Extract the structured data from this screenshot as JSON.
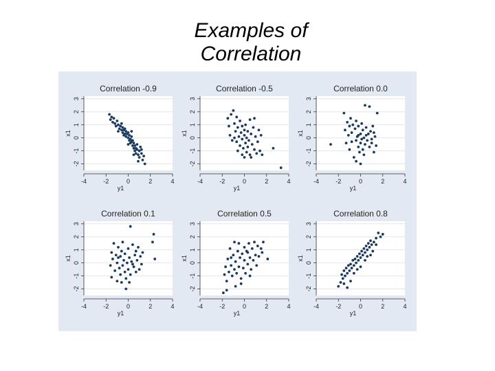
{
  "slide": {
    "title_line1": "Examples of",
    "title_line2": "Correlation"
  },
  "colors": {
    "panel_bg": "#e3e9f2",
    "plot_bg": "#ffffff",
    "grid": "#e2e6ea",
    "point": "#1b3a5f",
    "text": "#222222"
  },
  "chart_data": [
    {
      "type": "scatter",
      "title": "Correlation -0.9",
      "xlabel": "y1",
      "ylabel": "x1",
      "xlim": [
        -4,
        4
      ],
      "ylim": [
        -2.5,
        3.2
      ],
      "xticks": [
        -4,
        -2,
        0,
        2,
        4
      ],
      "yticks": [
        -2,
        -1,
        0,
        1,
        2,
        3
      ],
      "points": [
        [
          -1.7,
          1.8
        ],
        [
          -1.5,
          1.6
        ],
        [
          -1.6,
          1.4
        ],
        [
          -1.3,
          1.5
        ],
        [
          -1.2,
          1.1
        ],
        [
          -1.0,
          1.3
        ],
        [
          -1.1,
          0.9
        ],
        [
          -0.9,
          1.0
        ],
        [
          -0.8,
          0.7
        ],
        [
          -0.7,
          0.9
        ],
        [
          -0.6,
          0.6
        ],
        [
          -0.5,
          0.8
        ],
        [
          -0.5,
          0.4
        ],
        [
          -0.4,
          0.6
        ],
        [
          -0.3,
          0.3
        ],
        [
          -0.3,
          0.7
        ],
        [
          -0.2,
          0.5
        ],
        [
          -0.2,
          0.1
        ],
        [
          -0.1,
          0.3
        ],
        [
          0.0,
          0.0
        ],
        [
          0.0,
          0.4
        ],
        [
          0.1,
          -0.2
        ],
        [
          0.1,
          0.2
        ],
        [
          0.2,
          -0.1
        ],
        [
          0.2,
          -0.4
        ],
        [
          0.3,
          0.1
        ],
        [
          0.3,
          -0.3
        ],
        [
          0.4,
          -0.6
        ],
        [
          0.4,
          -0.2
        ],
        [
          0.5,
          -0.8
        ],
        [
          0.5,
          -0.4
        ],
        [
          0.6,
          -0.6
        ],
        [
          0.6,
          -1.0
        ],
        [
          0.7,
          -0.8
        ],
        [
          0.7,
          -1.2
        ],
        [
          0.8,
          -0.9
        ],
        [
          0.9,
          -1.3
        ],
        [
          1.0,
          -1.0
        ],
        [
          1.0,
          -1.5
        ],
        [
          1.2,
          -1.2
        ],
        [
          1.3,
          -1.7
        ],
        [
          1.4,
          -1.4
        ],
        [
          1.5,
          -2.0
        ],
        [
          -0.9,
          0.5
        ],
        [
          -0.6,
          1.1
        ],
        [
          0.0,
          -0.5
        ],
        [
          0.3,
          0.5
        ],
        [
          0.8,
          -0.5
        ],
        [
          1.1,
          -0.7
        ],
        [
          0.5,
          -1.3
        ],
        [
          -0.4,
          0.2
        ],
        [
          -1.4,
          1.2
        ],
        [
          0.9,
          -1.8
        ],
        [
          1.2,
          -0.9
        ]
      ]
    },
    {
      "type": "scatter",
      "title": "Correlation -0.5",
      "xlabel": "y1",
      "ylabel": "x1",
      "xlim": [
        -4,
        4
      ],
      "ylim": [
        -2.5,
        3.2
      ],
      "xticks": [
        -4,
        -2,
        0,
        2,
        4
      ],
      "yticks": [
        -2,
        -1,
        0,
        1,
        2,
        3
      ],
      "points": [
        [
          -1.5,
          1.5
        ],
        [
          -1.4,
          0.9
        ],
        [
          -1.2,
          1.8
        ],
        [
          -1.3,
          0.2
        ],
        [
          -1.0,
          2.1
        ],
        [
          -0.9,
          1.1
        ],
        [
          -0.8,
          0.5
        ],
        [
          -0.7,
          1.6
        ],
        [
          -0.7,
          -0.3
        ],
        [
          -0.6,
          0.8
        ],
        [
          -0.5,
          0.1
        ],
        [
          -0.4,
          1.3
        ],
        [
          -0.4,
          -0.6
        ],
        [
          -0.3,
          0.4
        ],
        [
          -0.2,
          -0.1
        ],
        [
          -0.2,
          0.9
        ],
        [
          -0.1,
          -0.8
        ],
        [
          0.0,
          0.2
        ],
        [
          0.0,
          0.6
        ],
        [
          0.1,
          -0.4
        ],
        [
          0.1,
          1.0
        ],
        [
          0.2,
          -1.1
        ],
        [
          0.2,
          0.0
        ],
        [
          0.3,
          0.5
        ],
        [
          0.3,
          -0.7
        ],
        [
          0.4,
          -0.2
        ],
        [
          0.5,
          1.4
        ],
        [
          0.5,
          -1.3
        ],
        [
          0.6,
          0.3
        ],
        [
          0.7,
          -0.5
        ],
        [
          0.8,
          0.8
        ],
        [
          0.9,
          -0.9
        ],
        [
          1.0,
          0.1
        ],
        [
          1.1,
          -1.2
        ],
        [
          1.2,
          -0.3
        ],
        [
          1.3,
          0.6
        ],
        [
          1.4,
          -1.0
        ],
        [
          1.5,
          0.2
        ],
        [
          -1.1,
          -0.2
        ],
        [
          -0.9,
          0.0
        ],
        [
          0.6,
          -1.5
        ],
        [
          -0.2,
          -1.3
        ],
        [
          0.9,
          1.5
        ],
        [
          2.6,
          -0.8
        ],
        [
          3.3,
          -2.3
        ],
        [
          1.6,
          -1.3
        ],
        [
          -0.6,
          -1.0
        ],
        [
          0.0,
          -1.5
        ]
      ]
    },
    {
      "type": "scatter",
      "title": "Correlation 0.0",
      "xlabel": "y1",
      "ylabel": "x1",
      "xlim": [
        -4,
        4
      ],
      "ylim": [
        -2.5,
        3.2
      ],
      "xticks": [
        -4,
        -2,
        0,
        2,
        4
      ],
      "yticks": [
        -2,
        -1,
        0,
        1,
        2,
        3
      ],
      "points": [
        [
          -1.5,
          1.9
        ],
        [
          -1.4,
          0.6
        ],
        [
          -1.3,
          -0.4
        ],
        [
          -1.2,
          1.2
        ],
        [
          -1.1,
          0.2
        ],
        [
          -1.0,
          -0.9
        ],
        [
          -0.9,
          1.5
        ],
        [
          -0.8,
          0.4
        ],
        [
          -0.8,
          -0.3
        ],
        [
          -0.7,
          1.0
        ],
        [
          -0.6,
          -1.5
        ],
        [
          -0.5,
          0.7
        ],
        [
          -0.4,
          -0.2
        ],
        [
          -0.4,
          1.3
        ],
        [
          -0.3,
          0.1
        ],
        [
          -0.2,
          -0.7
        ],
        [
          -0.2,
          0.9
        ],
        [
          -0.1,
          -1.1
        ],
        [
          0.0,
          0.3
        ],
        [
          0.0,
          -0.4
        ],
        [
          0.1,
          1.1
        ],
        [
          0.1,
          -0.1
        ],
        [
          0.2,
          0.6
        ],
        [
          0.2,
          -0.9
        ],
        [
          0.3,
          0.0
        ],
        [
          0.4,
          2.5
        ],
        [
          0.4,
          -0.5
        ],
        [
          0.5,
          0.8
        ],
        [
          0.6,
          -0.2
        ],
        [
          0.7,
          0.3
        ],
        [
          0.8,
          2.4
        ],
        [
          0.8,
          -0.7
        ],
        [
          0.9,
          0.5
        ],
        [
          1.0,
          -0.4
        ],
        [
          1.1,
          0.9
        ],
        [
          1.2,
          -1.1
        ],
        [
          1.3,
          0.1
        ],
        [
          1.4,
          -0.6
        ],
        [
          1.5,
          1.9
        ],
        [
          -2.7,
          -0.5
        ],
        [
          -0.4,
          -1.8
        ],
        [
          0.0,
          -2.0
        ],
        [
          1.0,
          -0.1
        ],
        [
          0.5,
          0.2
        ],
        [
          -0.2,
          0.2
        ],
        [
          1.2,
          0.4
        ],
        [
          -1.0,
          0.9
        ],
        [
          0.3,
          -1.3
        ]
      ]
    },
    {
      "type": "scatter",
      "title": "Correlation 0.1",
      "xlabel": "y1",
      "ylabel": "x1",
      "xlim": [
        -4,
        4
      ],
      "ylim": [
        -2.5,
        3.2
      ],
      "xticks": [
        -4,
        -2,
        0,
        2,
        4
      ],
      "yticks": [
        -2,
        -1,
        0,
        1,
        2,
        3
      ],
      "points": [
        [
          -1.6,
          -0.2
        ],
        [
          -1.5,
          0.8
        ],
        [
          -1.5,
          -1.1
        ],
        [
          -1.4,
          0.3
        ],
        [
          -1.3,
          1.5
        ],
        [
          -1.2,
          -0.6
        ],
        [
          -1.1,
          0.6
        ],
        [
          -1.0,
          -1.4
        ],
        [
          -1.0,
          0.0
        ],
        [
          -0.9,
          1.2
        ],
        [
          -0.8,
          -0.4
        ],
        [
          -0.7,
          0.5
        ],
        [
          -0.7,
          -0.9
        ],
        [
          -0.6,
          0.9
        ],
        [
          -0.5,
          -0.2
        ],
        [
          -0.5,
          1.6
        ],
        [
          -0.4,
          0.2
        ],
        [
          -0.3,
          -0.7
        ],
        [
          -0.3,
          0.7
        ],
        [
          -0.2,
          -1.2
        ],
        [
          -0.1,
          0.0
        ],
        [
          0.0,
          1.1
        ],
        [
          0.0,
          -0.5
        ],
        [
          0.1,
          0.4
        ],
        [
          0.2,
          -0.9
        ],
        [
          0.2,
          2.8
        ],
        [
          0.3,
          0.1
        ],
        [
          0.4,
          1.4
        ],
        [
          0.5,
          -0.3
        ],
        [
          0.6,
          0.6
        ],
        [
          0.7,
          -0.7
        ],
        [
          0.8,
          0.2
        ],
        [
          0.9,
          1.2
        ],
        [
          1.0,
          -0.5
        ],
        [
          1.1,
          0.5
        ],
        [
          1.2,
          -0.1
        ],
        [
          1.3,
          0.8
        ],
        [
          2.3,
          2.2
        ],
        [
          2.2,
          1.6
        ],
        [
          2.4,
          0.3
        ],
        [
          -0.2,
          -2.0
        ],
        [
          -0.6,
          -1.5
        ],
        [
          0.4,
          -0.1
        ],
        [
          -0.9,
          0.4
        ],
        [
          0.7,
          0.9
        ],
        [
          0.1,
          -1.5
        ]
      ]
    },
    {
      "type": "scatter",
      "title": "Correlation 0.5",
      "xlabel": "y1",
      "ylabel": "x1",
      "xlim": [
        -4,
        4
      ],
      "ylim": [
        -2.5,
        3.2
      ],
      "xticks": [
        -4,
        -2,
        0,
        2,
        4
      ],
      "yticks": [
        -2,
        -1,
        0,
        1,
        2,
        3
      ],
      "points": [
        [
          -1.8,
          -0.9
        ],
        [
          -1.7,
          -0.3
        ],
        [
          -1.6,
          -1.4
        ],
        [
          -1.5,
          0.3
        ],
        [
          -1.4,
          -0.7
        ],
        [
          -1.3,
          1.1
        ],
        [
          -1.2,
          -0.2
        ],
        [
          -1.1,
          -1.0
        ],
        [
          -1.0,
          0.6
        ],
        [
          -0.9,
          -0.5
        ],
        [
          -0.9,
          1.6
        ],
        [
          -0.8,
          0.1
        ],
        [
          -0.7,
          -0.8
        ],
        [
          -0.6,
          0.9
        ],
        [
          -0.5,
          -0.3
        ],
        [
          -0.5,
          1.5
        ],
        [
          -0.4,
          0.4
        ],
        [
          -0.3,
          -1.2
        ],
        [
          -0.2,
          0.7
        ],
        [
          -0.1,
          -0.4
        ],
        [
          0.0,
          1.2
        ],
        [
          0.0,
          0.2
        ],
        [
          0.1,
          -0.8
        ],
        [
          0.2,
          0.9
        ],
        [
          0.3,
          -0.1
        ],
        [
          0.4,
          1.5
        ],
        [
          0.5,
          0.4
        ],
        [
          0.6,
          -0.5
        ],
        [
          0.7,
          1.1
        ],
        [
          0.8,
          0.2
        ],
        [
          0.9,
          1.6
        ],
        [
          1.0,
          0.6
        ],
        [
          1.1,
          -0.2
        ],
        [
          1.2,
          1.3
        ],
        [
          1.3,
          0.5
        ],
        [
          1.5,
          1.1
        ],
        [
          1.7,
          1.6
        ],
        [
          2.1,
          0.3
        ],
        [
          -1.9,
          -2.3
        ],
        [
          -1.6,
          -2.1
        ],
        [
          -0.8,
          -1.8
        ],
        [
          -0.3,
          -1.6
        ],
        [
          0.5,
          -1.0
        ],
        [
          1.6,
          0.8
        ],
        [
          -1.2,
          0.4
        ],
        [
          0.3,
          0.8
        ]
      ]
    },
    {
      "type": "scatter",
      "title": "Correlation 0.8",
      "xlabel": "y1",
      "ylabel": "x1",
      "xlim": [
        -4,
        4
      ],
      "ylim": [
        -2.5,
        3.2
      ],
      "xticks": [
        -4,
        -2,
        0,
        2,
        4
      ],
      "yticks": [
        -2,
        -1,
        0,
        1,
        2,
        3
      ],
      "points": [
        [
          -2.0,
          -1.8
        ],
        [
          -1.8,
          -1.5
        ],
        [
          -1.7,
          -0.9
        ],
        [
          -1.6,
          -1.2
        ],
        [
          -1.5,
          -0.6
        ],
        [
          -1.4,
          -1.0
        ],
        [
          -1.3,
          -0.4
        ],
        [
          -1.2,
          -0.8
        ],
        [
          -1.1,
          -0.2
        ],
        [
          -1.0,
          -0.6
        ],
        [
          -0.9,
          -0.1
        ],
        [
          -0.8,
          -0.4
        ],
        [
          -0.7,
          0.2
        ],
        [
          -0.6,
          -0.2
        ],
        [
          -0.5,
          0.3
        ],
        [
          -0.4,
          0.0
        ],
        [
          -0.3,
          0.5
        ],
        [
          -0.2,
          0.2
        ],
        [
          -0.1,
          0.7
        ],
        [
          0.0,
          0.4
        ],
        [
          0.1,
          0.9
        ],
        [
          0.2,
          0.6
        ],
        [
          0.3,
          1.1
        ],
        [
          0.4,
          0.8
        ],
        [
          0.5,
          1.3
        ],
        [
          0.6,
          1.0
        ],
        [
          0.7,
          1.5
        ],
        [
          0.8,
          1.2
        ],
        [
          0.9,
          1.7
        ],
        [
          1.0,
          1.4
        ],
        [
          1.2,
          1.6
        ],
        [
          1.4,
          1.9
        ],
        [
          1.6,
          2.3
        ],
        [
          1.8,
          2.0
        ],
        [
          2.0,
          2.2
        ],
        [
          -1.5,
          -1.6
        ],
        [
          -1.2,
          -1.9
        ],
        [
          -0.6,
          -0.8
        ],
        [
          0.0,
          -0.3
        ],
        [
          0.4,
          0.2
        ],
        [
          0.9,
          0.6
        ],
        [
          -0.9,
          -1.4
        ],
        [
          0.6,
          0.5
        ],
        [
          1.1,
          0.9
        ],
        [
          1.4,
          1.4
        ],
        [
          -0.3,
          -0.5
        ]
      ]
    }
  ]
}
